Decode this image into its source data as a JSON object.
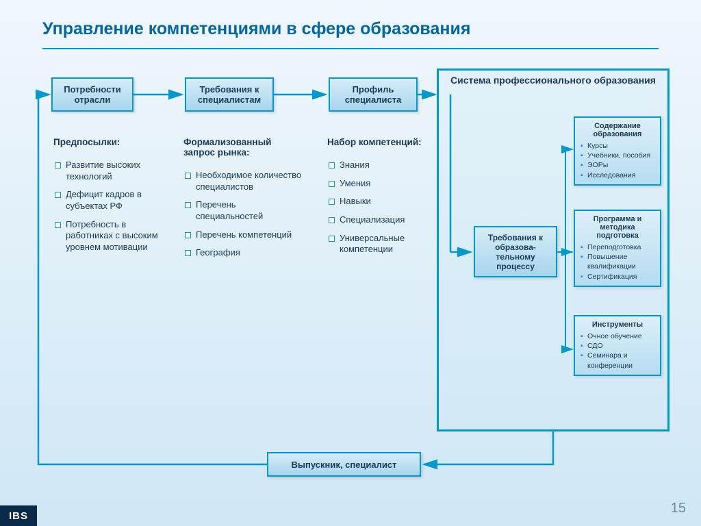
{
  "title": "Управление компетенциями в сфере образования",
  "boxes": {
    "b1": "Потребности отрасли",
    "b2": "Требования к специалистам",
    "b3": "Профиль специалиста",
    "b4": "Требования к образова-тельному процессу",
    "b5": "Выпускник, специалист"
  },
  "container_title": "Система профессионального образования",
  "columns": {
    "c1": {
      "head": "Предпосылки:",
      "items": [
        "Развитие высоких технологий",
        "Дефицит кадров в субъектах РФ",
        "Потребность в работниках с высоким уровнем мотивации"
      ]
    },
    "c2": {
      "head": "Формализованный запрос рынка:",
      "items": [
        "Необходимое количество специалистов",
        "Перечень специальностей",
        "Перечень компетенций",
        "География"
      ]
    },
    "c3": {
      "head": "Набор компетенций:",
      "items": [
        "Знания",
        "Умения",
        "Навыки",
        "Специализация",
        "Универсальные компетенции"
      ]
    }
  },
  "side": {
    "s1": {
      "head": "Содержание образования",
      "items": [
        "Курсы",
        "Учебники, пособия",
        "ЭОРы",
        "Исследования"
      ]
    },
    "s2": {
      "head": "Программа и методика подготовка",
      "items": [
        "Переподготовка",
        "Повышение квалификации",
        "Сертификация"
      ]
    },
    "s3": {
      "head": "Инструменты",
      "items": [
        "Очное обучение",
        "СДО",
        "Семинара и конференции"
      ]
    }
  },
  "logo": "IBS",
  "page": "15",
  "colors": {
    "primary": "#0099cc",
    "text": "#1a3a5a",
    "title": "#0066a4"
  }
}
